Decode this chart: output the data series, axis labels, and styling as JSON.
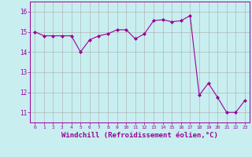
{
  "x": [
    0,
    1,
    2,
    3,
    4,
    5,
    6,
    7,
    8,
    9,
    10,
    11,
    12,
    13,
    14,
    15,
    16,
    17,
    18,
    19,
    20,
    21,
    22,
    23
  ],
  "y": [
    15.0,
    14.8,
    14.8,
    14.8,
    14.8,
    14.0,
    14.6,
    14.8,
    14.9,
    15.1,
    15.1,
    14.65,
    14.9,
    15.55,
    15.6,
    15.5,
    15.55,
    15.8,
    11.85,
    12.45,
    11.75,
    11.0,
    11.0,
    11.6
  ],
  "line_color": "#990099",
  "marker": "D",
  "marker_size": 2,
  "bg_color": "#c8eef0",
  "grid_color": "#aaaaaa",
  "xlabel": "Windchill (Refroidissement éolien,°C)",
  "xlabel_fontsize": 6.5,
  "xtick_labels": [
    "0",
    "1",
    "2",
    "3",
    "4",
    "5",
    "6",
    "7",
    "8",
    "9",
    "10",
    "11",
    "12",
    "13",
    "14",
    "15",
    "16",
    "17",
    "18",
    "19",
    "20",
    "21",
    "22",
    "23"
  ],
  "ytick_vals": [
    11,
    12,
    13,
    14,
    15,
    16
  ],
  "ylim": [
    10.5,
    16.5
  ],
  "xlim": [
    -0.5,
    23.5
  ]
}
